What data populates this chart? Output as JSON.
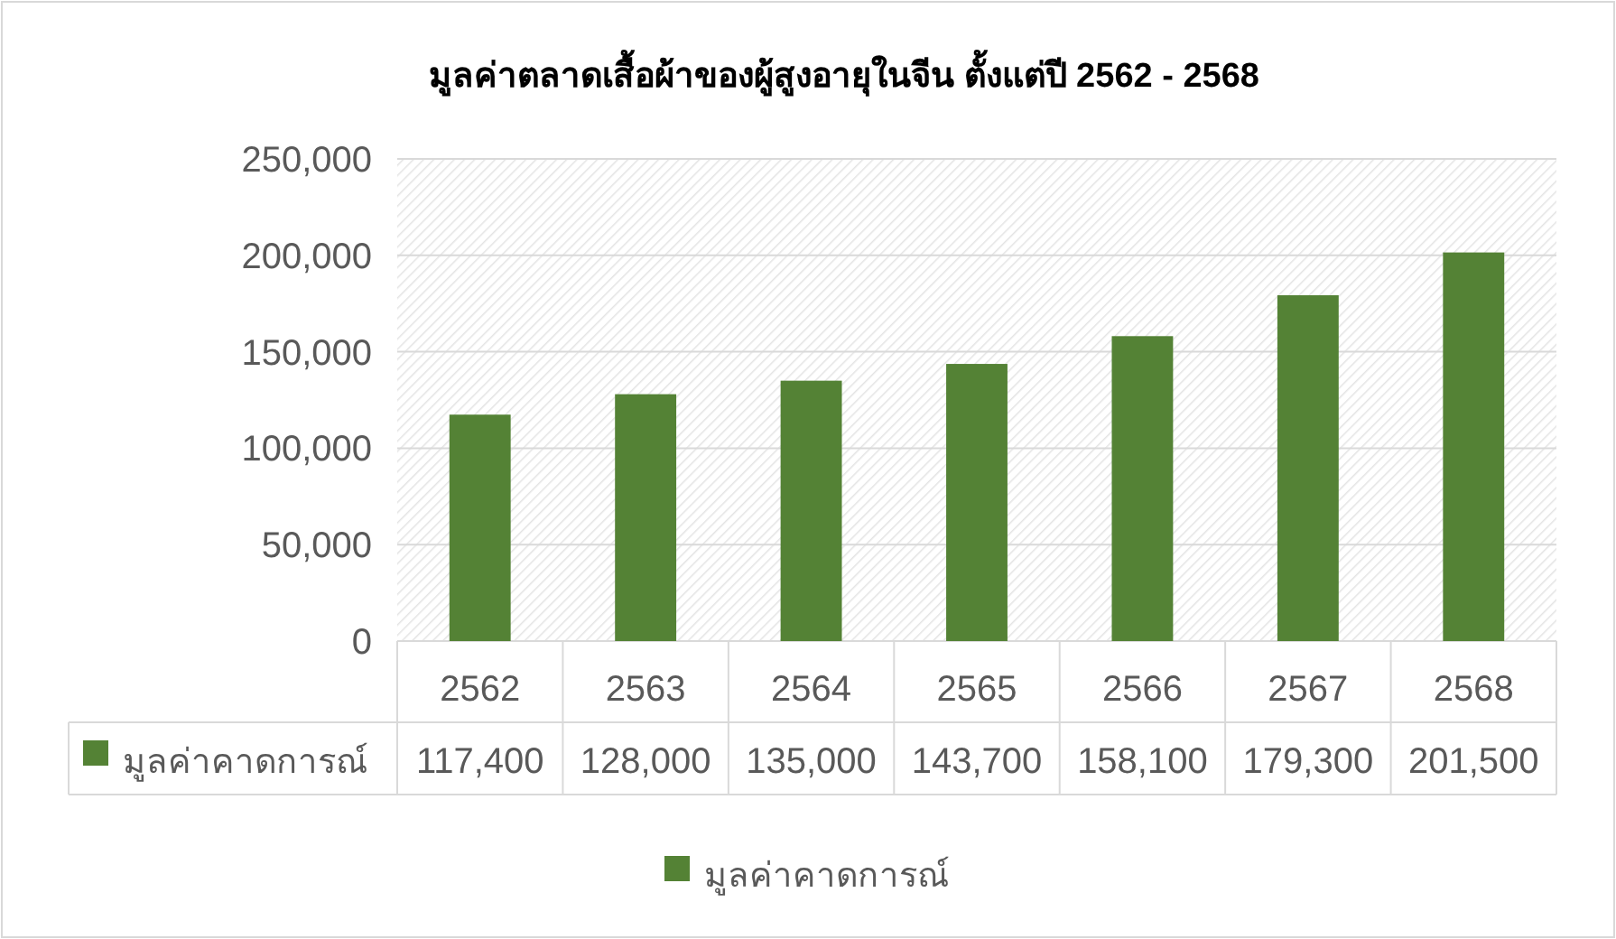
{
  "chart_data": {
    "type": "bar",
    "title": "มูลค่าตลาดเสื้อผ้าของผู้สูงอายุในจีน ตั้งแต่ปี 2562 - 2568",
    "categories": [
      "2562",
      "2563",
      "2564",
      "2565",
      "2566",
      "2567",
      "2568"
    ],
    "series": [
      {
        "name": "มูลค่าคาดการณ์",
        "color": "#548235",
        "values": [
          117400,
          128000,
          135000,
          143700,
          158100,
          179300,
          201500
        ],
        "value_labels": [
          "117,400",
          "128,000",
          "135,000",
          "143,700",
          "158,100",
          "179,300",
          "201,500"
        ]
      }
    ],
    "ylim": [
      0,
      250000
    ],
    "yticks": [
      0,
      {
        "value": 50000,
        "label": "50,000"
      },
      {
        "value": 100000,
        "label": "100,000"
      },
      {
        "value": 150000,
        "label": "150,000"
      },
      {
        "value": 200000,
        "label": "200,000"
      },
      {
        "value": 250000,
        "label": "250,000"
      }
    ],
    "grid": "y",
    "legend": "bottom"
  }
}
